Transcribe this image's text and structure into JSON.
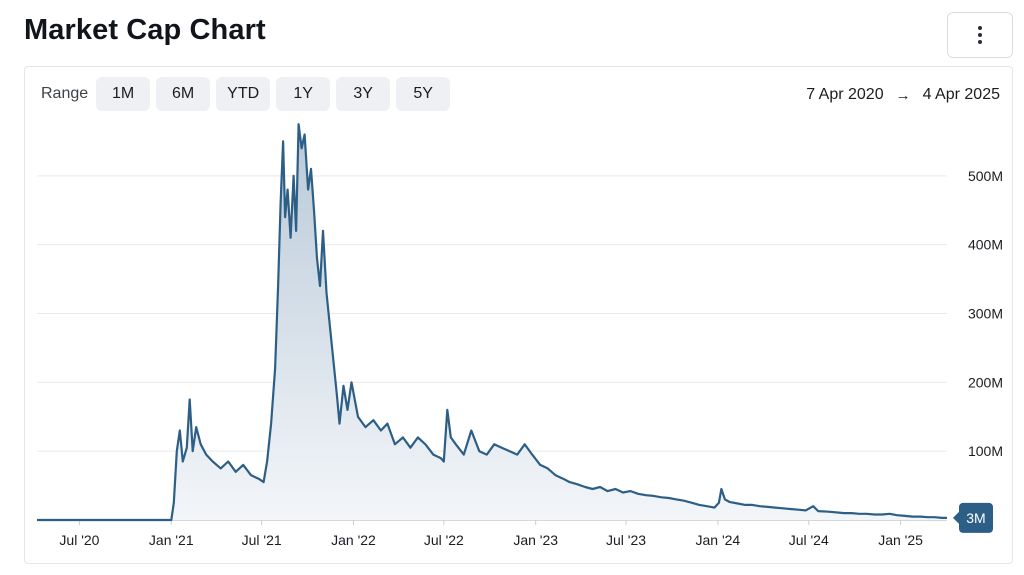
{
  "page": {
    "title": "Market Cap Chart"
  },
  "toolbar": {
    "range_label": "Range",
    "range_buttons": [
      "1M",
      "6M",
      "YTD",
      "1Y",
      "3Y",
      "5Y"
    ],
    "date_start": "7 Apr 2020",
    "date_arrow": "→",
    "date_end": "4 Apr 2025",
    "menu_icon": "kebab-menu-icon"
  },
  "chart_data": {
    "type": "area",
    "title": "",
    "xlabel": "",
    "ylabel": "",
    "x_ticks": [
      "Jul '20",
      "Jan '21",
      "Jul '21",
      "Jan '22",
      "Jul '22",
      "Jan '23",
      "Jul '23",
      "Jan '24",
      "Jul '24",
      "Jan '25"
    ],
    "y_ticks": [
      "100M",
      "200M",
      "300M",
      "400M",
      "500M"
    ],
    "y_tick_values": [
      100,
      200,
      300,
      400,
      500
    ],
    "ylim": [
      0,
      600
    ],
    "y_unit": "M",
    "xlim": [
      "2020-04-07",
      "2025-04-04"
    ],
    "grid": true,
    "line_color": "#2d5f86",
    "fill_color_top": "#b9c9d8",
    "fill_color_bottom": "#f3f6f9",
    "last_value_label": "3M",
    "series": [
      {
        "points": [
          [
            "2020-04-07",
            0
          ],
          [
            "2020-07-01",
            0
          ],
          [
            "2020-10-01",
            0
          ],
          [
            "2020-12-20",
            0
          ],
          [
            "2021-01-01",
            0
          ],
          [
            "2021-01-06",
            25
          ],
          [
            "2021-01-12",
            100
          ],
          [
            "2021-01-18",
            130
          ],
          [
            "2021-01-24",
            85
          ],
          [
            "2021-02-01",
            105
          ],
          [
            "2021-02-07",
            175
          ],
          [
            "2021-02-13",
            100
          ],
          [
            "2021-02-20",
            135
          ],
          [
            "2021-03-01",
            110
          ],
          [
            "2021-03-12",
            95
          ],
          [
            "2021-03-25",
            85
          ],
          [
            "2021-04-10",
            75
          ],
          [
            "2021-04-25",
            85
          ],
          [
            "2021-05-10",
            70
          ],
          [
            "2021-05-25",
            80
          ],
          [
            "2021-06-10",
            65
          ],
          [
            "2021-06-25",
            60
          ],
          [
            "2021-07-05",
            55
          ],
          [
            "2021-07-12",
            85
          ],
          [
            "2021-07-20",
            140
          ],
          [
            "2021-07-28",
            220
          ],
          [
            "2021-08-03",
            340
          ],
          [
            "2021-08-08",
            460
          ],
          [
            "2021-08-13",
            550
          ],
          [
            "2021-08-17",
            440
          ],
          [
            "2021-08-22",
            480
          ],
          [
            "2021-08-28",
            410
          ],
          [
            "2021-09-03",
            500
          ],
          [
            "2021-09-08",
            420
          ],
          [
            "2021-09-13",
            575
          ],
          [
            "2021-09-19",
            540
          ],
          [
            "2021-09-25",
            560
          ],
          [
            "2021-10-02",
            480
          ],
          [
            "2021-10-08",
            510
          ],
          [
            "2021-10-14",
            450
          ],
          [
            "2021-10-20",
            380
          ],
          [
            "2021-10-26",
            340
          ],
          [
            "2021-11-01",
            420
          ],
          [
            "2021-11-08",
            330
          ],
          [
            "2021-11-15",
            280
          ],
          [
            "2021-11-22",
            230
          ],
          [
            "2021-11-29",
            180
          ],
          [
            "2021-12-04",
            140
          ],
          [
            "2021-12-12",
            195
          ],
          [
            "2021-12-20",
            160
          ],
          [
            "2021-12-28",
            200
          ],
          [
            "2022-01-10",
            150
          ],
          [
            "2022-01-25",
            135
          ],
          [
            "2022-02-10",
            145
          ],
          [
            "2022-02-25",
            130
          ],
          [
            "2022-03-10",
            140
          ],
          [
            "2022-03-25",
            110
          ],
          [
            "2022-04-10",
            120
          ],
          [
            "2022-04-25",
            105
          ],
          [
            "2022-05-10",
            120
          ],
          [
            "2022-05-25",
            110
          ],
          [
            "2022-06-10",
            95
          ],
          [
            "2022-06-25",
            90
          ],
          [
            "2022-07-01",
            85
          ],
          [
            "2022-07-08",
            160
          ],
          [
            "2022-07-15",
            120
          ],
          [
            "2022-07-25",
            110
          ],
          [
            "2022-08-10",
            95
          ],
          [
            "2022-08-25",
            130
          ],
          [
            "2022-09-10",
            100
          ],
          [
            "2022-09-25",
            95
          ],
          [
            "2022-10-10",
            110
          ],
          [
            "2022-10-25",
            105
          ],
          [
            "2022-11-10",
            100
          ],
          [
            "2022-11-25",
            95
          ],
          [
            "2022-12-10",
            110
          ],
          [
            "2022-12-25",
            95
          ],
          [
            "2023-01-10",
            80
          ],
          [
            "2023-01-25",
            75
          ],
          [
            "2023-02-10",
            65
          ],
          [
            "2023-02-25",
            60
          ],
          [
            "2023-03-10",
            55
          ],
          [
            "2023-03-25",
            52
          ],
          [
            "2023-04-10",
            48
          ],
          [
            "2023-04-25",
            45
          ],
          [
            "2023-05-10",
            48
          ],
          [
            "2023-05-25",
            42
          ],
          [
            "2023-06-10",
            45
          ],
          [
            "2023-06-25",
            40
          ],
          [
            "2023-07-10",
            42
          ],
          [
            "2023-07-25",
            38
          ],
          [
            "2023-08-10",
            36
          ],
          [
            "2023-08-25",
            35
          ],
          [
            "2023-09-10",
            33
          ],
          [
            "2023-09-25",
            32
          ],
          [
            "2023-10-10",
            30
          ],
          [
            "2023-10-25",
            28
          ],
          [
            "2023-11-10",
            25
          ],
          [
            "2023-11-25",
            22
          ],
          [
            "2023-12-10",
            20
          ],
          [
            "2023-12-25",
            18
          ],
          [
            "2024-01-03",
            25
          ],
          [
            "2024-01-08",
            45
          ],
          [
            "2024-01-15",
            30
          ],
          [
            "2024-01-25",
            26
          ],
          [
            "2024-02-10",
            24
          ],
          [
            "2024-02-25",
            22
          ],
          [
            "2024-03-10",
            22
          ],
          [
            "2024-03-25",
            20
          ],
          [
            "2024-04-10",
            19
          ],
          [
            "2024-04-25",
            18
          ],
          [
            "2024-05-10",
            17
          ],
          [
            "2024-05-25",
            16
          ],
          [
            "2024-06-10",
            15
          ],
          [
            "2024-06-25",
            14
          ],
          [
            "2024-07-10",
            20
          ],
          [
            "2024-07-20",
            13
          ],
          [
            "2024-08-10",
            12
          ],
          [
            "2024-08-25",
            11
          ],
          [
            "2024-09-10",
            10
          ],
          [
            "2024-09-25",
            10
          ],
          [
            "2024-10-10",
            9
          ],
          [
            "2024-10-25",
            9
          ],
          [
            "2024-11-10",
            8
          ],
          [
            "2024-11-25",
            8
          ],
          [
            "2024-12-10",
            9
          ],
          [
            "2024-12-25",
            7
          ],
          [
            "2025-01-10",
            6
          ],
          [
            "2025-01-25",
            5
          ],
          [
            "2025-02-10",
            5
          ],
          [
            "2025-02-25",
            4
          ],
          [
            "2025-03-10",
            4
          ],
          [
            "2025-03-25",
            3
          ],
          [
            "2025-04-04",
            3
          ]
        ]
      }
    ]
  }
}
